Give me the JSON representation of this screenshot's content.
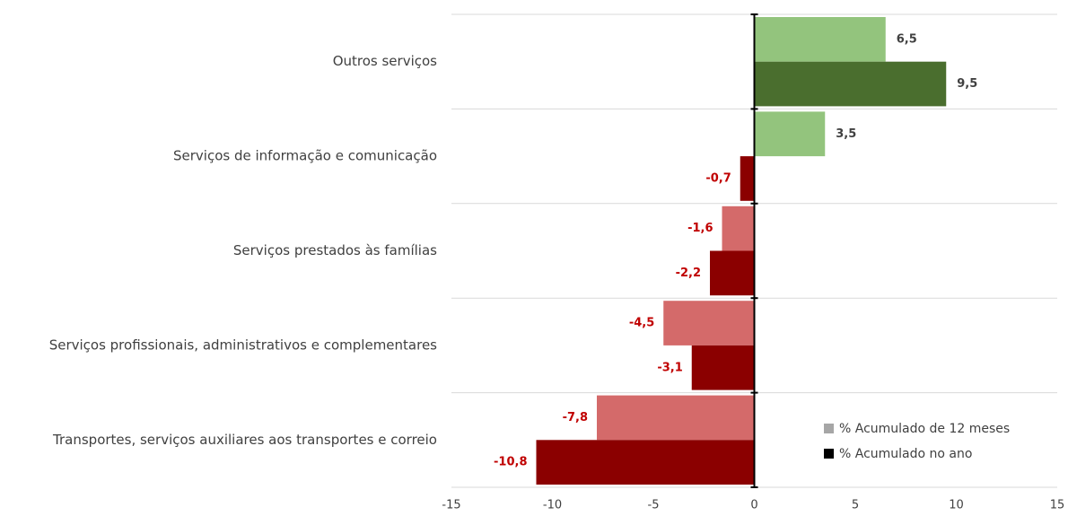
{
  "chart_data": {
    "type": "hbar",
    "categories": [
      "Outros serviços",
      "Serviços de informação e comunicação",
      "Serviços prestados às famílias",
      "Serviços profissionais, administrativos e complementares",
      "Transportes, serviços auxiliares aos transportes e correio"
    ],
    "series": [
      {
        "name": "% Acumulado de 12 meses",
        "color": "#a6a6a6",
        "positive_color": "#93c47d",
        "negative_color": "#d46a6a",
        "values": [
          6.5,
          3.5,
          -1.6,
          -4.5,
          -7.8
        ],
        "value_labels": [
          "6,5",
          "3,5",
          "-1,6",
          "-4,5",
          "-7,8"
        ]
      },
      {
        "name": "% Acumulado no ano",
        "color": "#000000",
        "positive_color": "#4a6e2e",
        "negative_color": "#8b0000",
        "values": [
          9.5,
          -0.7,
          -2.2,
          -3.1,
          -10.8
        ],
        "value_labels": [
          "9,5",
          "-0,7",
          "-2,2",
          "-3,1",
          "-10,8"
        ]
      }
    ],
    "xlim": [
      -15,
      15
    ],
    "xticks": [
      -15,
      -10,
      -5,
      0,
      5,
      10,
      15
    ],
    "grid": true,
    "legend": "lower right"
  }
}
